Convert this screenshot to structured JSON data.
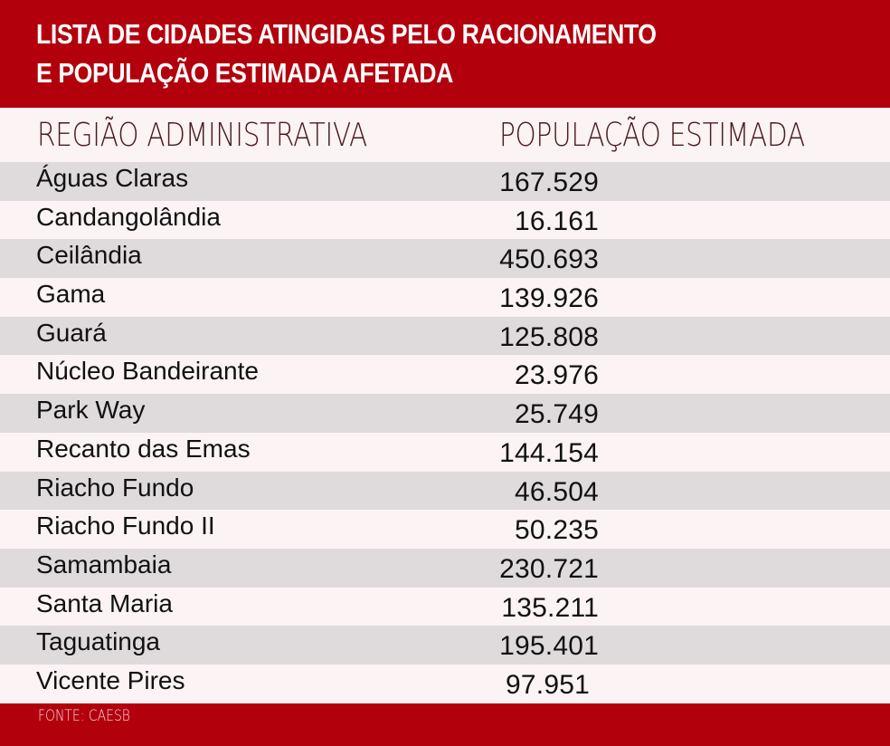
{
  "header": {
    "title_line1": "LISTA DE CIDADES ATINGIDAS PELO RACIONAMENTO",
    "title_line2": "E POPULAÇÃO ESTIMADA AFETADA"
  },
  "columns": {
    "region": "REGIÃO ADMINISTRATIVA",
    "population": "POPULAÇÃO ESTIMADA"
  },
  "rows": [
    {
      "region": "Águas Claras",
      "population": "167.529"
    },
    {
      "region": "Candangolândia",
      "population": "16.161"
    },
    {
      "region": "Ceilândia",
      "population": "450.693"
    },
    {
      "region": "Gama",
      "population": "139.926"
    },
    {
      "region": "Guará",
      "population": "125.808"
    },
    {
      "region": "Núcleo Bandeirante",
      "population": "23.976"
    },
    {
      "region": "Park Way",
      "population": "25.749"
    },
    {
      "region": "Recanto das Emas",
      "population": "144.154"
    },
    {
      "region": "Riacho Fundo",
      "population": "46.504"
    },
    {
      "region": "Riacho Fundo II",
      "population": "50.235"
    },
    {
      "region": "Samambaia",
      "population": "230.721"
    },
    {
      "region": "Santa Maria",
      "population": "135.211"
    },
    {
      "region": "Taguatinga",
      "population": "195.401"
    },
    {
      "region": "Vicente Pires",
      "population": "97.951"
    }
  ],
  "footer": {
    "source": "FONTE: CAESB"
  },
  "colors": {
    "brand_red": "#b2000d",
    "row_stripe": "#dfdadb",
    "row_bg": "#fbf3f4",
    "header_text": "#4a1a1e"
  },
  "chart_data": {
    "type": "table",
    "title": "LISTA DE CIDADES ATINGIDAS PELO RACIONAMENTO E POPULAÇÃO ESTIMADA AFETADA",
    "columns": [
      "REGIÃO ADMINISTRATIVA",
      "POPULAÇÃO ESTIMADA"
    ],
    "categories": [
      "Águas Claras",
      "Candangolândia",
      "Ceilândia",
      "Gama",
      "Guará",
      "Núcleo Bandeirante",
      "Park Way",
      "Recanto das Emas",
      "Riacho Fundo",
      "Riacho Fundo II",
      "Samambaia",
      "Santa Maria",
      "Taguatinga",
      "Vicente Pires"
    ],
    "values": [
      167529,
      16161,
      450693,
      139926,
      125808,
      23976,
      25749,
      144154,
      46504,
      50235,
      230721,
      135211,
      195401,
      97951
    ],
    "source": "FONTE: CAESB"
  }
}
